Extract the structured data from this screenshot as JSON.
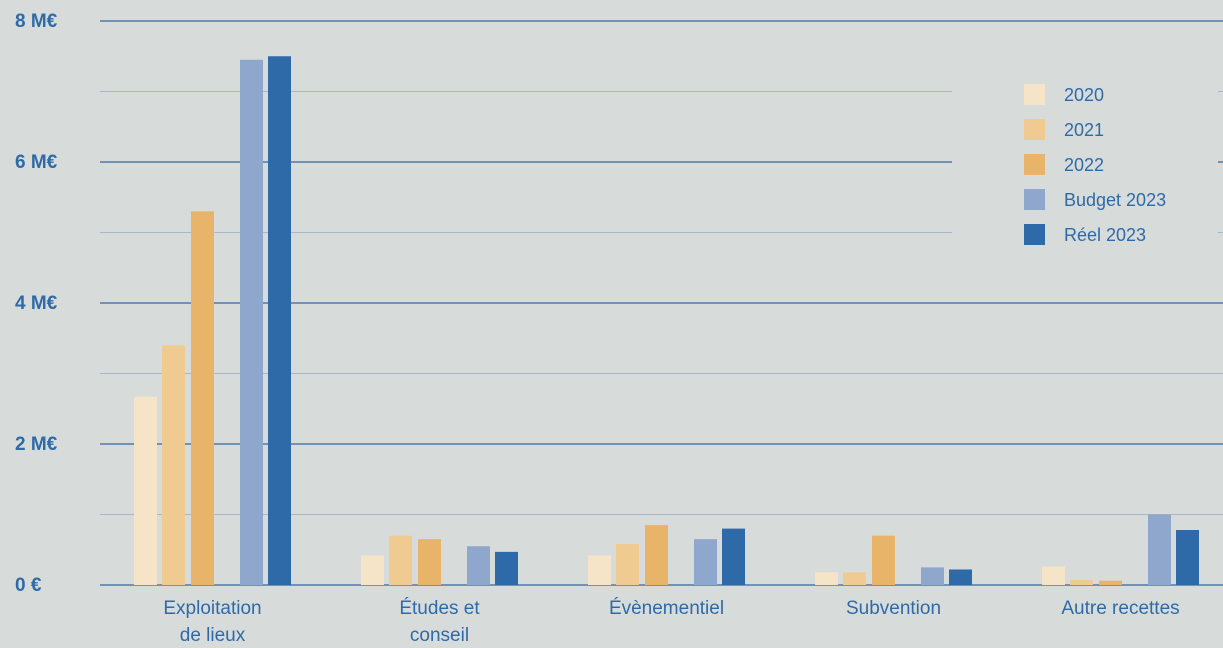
{
  "colors": {
    "background": "#d7dcdb",
    "text": "#2f6aa8",
    "major_grid": "#4f79ab",
    "minor_grid": "#a6b7cb"
  },
  "chart_data": {
    "type": "bar",
    "title": "",
    "xlabel": "",
    "ylabel": "",
    "ylim": [
      0,
      8
    ],
    "y_unit": "M€",
    "yticks": [
      {
        "value": 0,
        "label": "0 €"
      },
      {
        "value": 2,
        "label": "2 M€"
      },
      {
        "value": 4,
        "label": "4 M€"
      },
      {
        "value": 6,
        "label": "6 M€"
      },
      {
        "value": 8,
        "label": "8 M€"
      }
    ],
    "grid": true,
    "minor_grid": true,
    "legend_position": "top-right",
    "categories": [
      [
        "Exploitation",
        "de lieux"
      ],
      [
        "Études et",
        "conseil"
      ],
      [
        "Évènementiel"
      ],
      [
        "Subvention"
      ],
      [
        "Autre recettes"
      ]
    ],
    "series": [
      {
        "name": "2020",
        "color": "#f5e4c7",
        "values": [
          2.67,
          0.42,
          0.42,
          0.18,
          0.26
        ]
      },
      {
        "name": "2021",
        "color": "#efcb92",
        "values": [
          3.4,
          0.7,
          0.58,
          0.18,
          0.07
        ]
      },
      {
        "name": "2022",
        "color": "#e8b46a",
        "values": [
          5.3,
          0.65,
          0.85,
          0.7,
          0.06
        ]
      },
      {
        "name": "Budget 2023",
        "color": "#8fa7cc",
        "values": [
          7.45,
          0.55,
          0.65,
          0.25,
          1.0
        ]
      },
      {
        "name": "Réel 2023",
        "color": "#2e6aa8",
        "values": [
          7.5,
          0.47,
          0.8,
          0.22,
          0.78
        ]
      }
    ]
  }
}
